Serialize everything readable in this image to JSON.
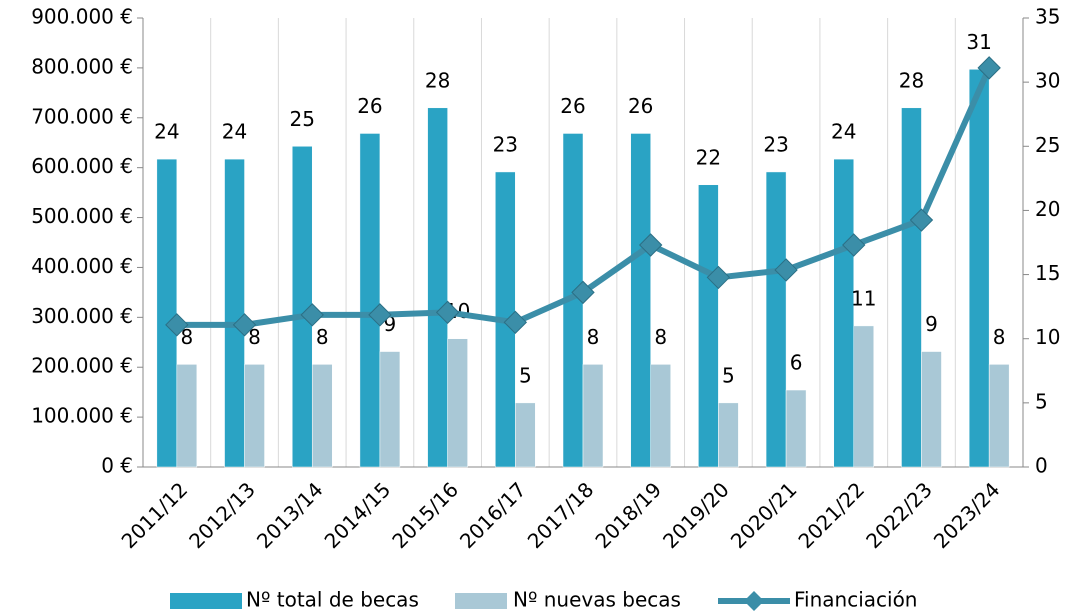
{
  "chart_data": {
    "type": "bar",
    "categories": [
      "2011/12",
      "2012/13",
      "2013/14",
      "2014/15",
      "2015/16",
      "2016/17",
      "2017/18",
      "2018/19",
      "2019/20",
      "2020/21",
      "2021/22",
      "2022/23",
      "2023/24"
    ],
    "series": [
      {
        "name": "Nº total de becas",
        "type": "bar",
        "axis": "y2",
        "color": "#2aa3c4",
        "values": [
          24,
          24,
          25,
          26,
          28,
          23,
          26,
          26,
          22,
          23,
          24,
          28,
          31
        ]
      },
      {
        "name": "Nº nuevas becas",
        "type": "bar",
        "axis": "y2",
        "color": "#a9c8d6",
        "values": [
          8,
          8,
          8,
          9,
          10,
          5,
          8,
          8,
          5,
          6,
          11,
          9,
          8
        ]
      },
      {
        "name": "Financiación",
        "type": "line",
        "axis": "y",
        "color": "#3b8ea8",
        "values": [
          285000,
          285000,
          305000,
          305000,
          310000,
          290000,
          350000,
          445000,
          380000,
          395000,
          445000,
          495000,
          800000
        ]
      }
    ],
    "ylim": [
      0,
      900000
    ],
    "yticks": [
      {
        "value": 0,
        "label": "0 €"
      },
      {
        "value": 100000,
        "label": "100.000 €"
      },
      {
        "value": 200000,
        "label": "200.000 €"
      },
      {
        "value": 300000,
        "label": "300.000 €"
      },
      {
        "value": 400000,
        "label": "400.000 €"
      },
      {
        "value": 500000,
        "label": "500.000 €"
      },
      {
        "value": 600000,
        "label": "600.000 €"
      },
      {
        "value": 700000,
        "label": "700.000 €"
      },
      {
        "value": 800000,
        "label": "800.000 €"
      },
      {
        "value": 900000,
        "label": "900.000 €"
      }
    ],
    "y2lim": [
      0,
      35
    ],
    "y2ticks": [
      0,
      5,
      10,
      15,
      20,
      25,
      30,
      35
    ],
    "legend": "bottom"
  }
}
